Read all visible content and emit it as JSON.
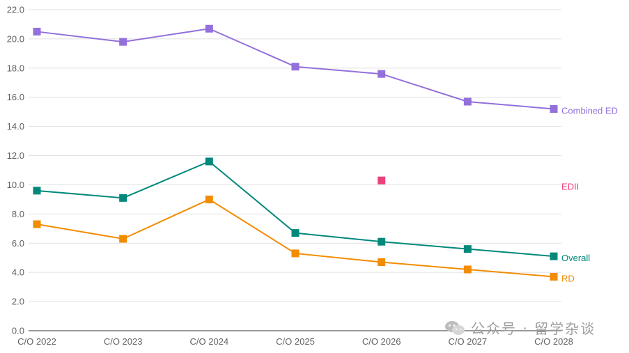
{
  "chart_data": {
    "type": "line",
    "categories": [
      "C/O 2022",
      "C/O 2023",
      "C/O 2024",
      "C/O 2025",
      "C/O 2026",
      "C/O 2027",
      "C/O 2028"
    ],
    "ylim": [
      0,
      22
    ],
    "yticks": [
      "0.0",
      "2.0",
      "4.0",
      "6.0",
      "8.0",
      "10.0",
      "12.0",
      "14.0",
      "16.0",
      "18.0",
      "20.0",
      "22.0"
    ],
    "grid": true,
    "series": [
      {
        "name": "Combined ED",
        "color": "#9370DB",
        "values": [
          20.5,
          19.8,
          20.7,
          18.1,
          17.6,
          15.7,
          15.2
        ]
      },
      {
        "name": "EDII",
        "color": "#EC407A",
        "values": [
          null,
          null,
          null,
          null,
          10.3,
          null,
          null
        ]
      },
      {
        "name": "Overall",
        "color": "#00897B",
        "values": [
          9.6,
          9.1,
          11.6,
          6.7,
          6.1,
          5.6,
          5.1
        ]
      },
      {
        "name": "RD",
        "color": "#F28C00",
        "values": [
          7.3,
          6.3,
          9.0,
          5.3,
          4.7,
          4.2,
          3.7
        ]
      }
    ]
  },
  "watermark": {
    "text": "公众号 · 留学杂谈",
    "icon": "wechat-icon"
  }
}
